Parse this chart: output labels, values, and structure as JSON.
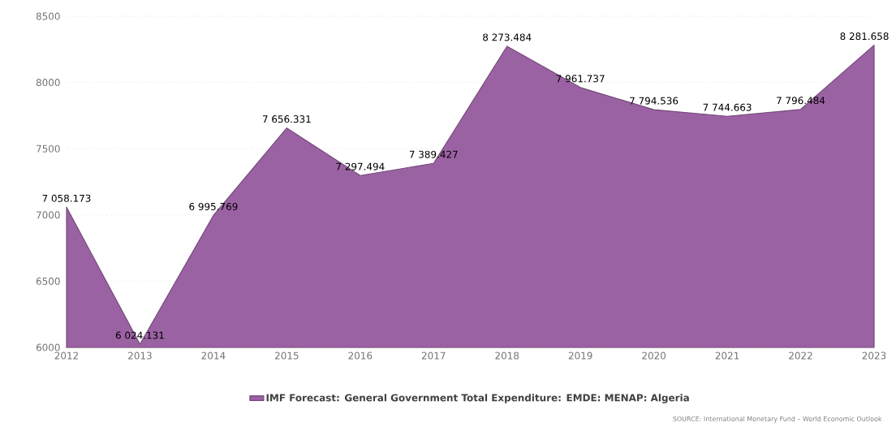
{
  "chart_data": {
    "type": "area",
    "categories": [
      "2012",
      "2013",
      "2014",
      "2015",
      "2016",
      "2017",
      "2018",
      "2019",
      "2020",
      "2021",
      "2022",
      "2023"
    ],
    "series": [
      {
        "name": "IMF Forecast: General Government Total Expenditure: EMDE: MENAP: Algeria",
        "color": "#9b62a3",
        "values": [
          7058.173,
          6024.131,
          6995.769,
          7656.331,
          7297.494,
          7389.427,
          8273.484,
          7961.737,
          7794.536,
          7744.663,
          7796.484,
          8281.658
        ],
        "value_labels": [
          "7 058.173",
          "6 024.131",
          "6 995.769",
          "7 656.331",
          "7 297.494",
          "7 389.427",
          "8 273.484",
          "7 961.737",
          "7 794.536",
          "7 744.663",
          "7 796.484",
          "8 281.658"
        ]
      }
    ],
    "ylim": [
      6000,
      8500
    ],
    "yticks": [
      6000,
      6500,
      7000,
      7500,
      8000,
      8500
    ],
    "grid": "y",
    "legend": "bottom",
    "marker": "none",
    "line_style": "solid",
    "annotations": [
      "SOURCE: International Monetary Fund – World Economic Outlook"
    ]
  }
}
